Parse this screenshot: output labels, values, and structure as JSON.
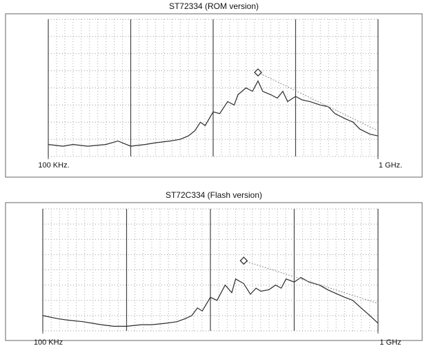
{
  "chart_data": [
    {
      "type": "line",
      "title": "ST72334 (ROM version)",
      "log_x": true,
      "grid": true,
      "xlim": [
        100000,
        1000000000
      ],
      "ylim": [
        0,
        8
      ],
      "xticks": [
        {
          "value": 100000,
          "label": "100 KHz."
        },
        {
          "value": 1000000000,
          "label": "1 GHz."
        }
      ],
      "x": [
        100000,
        150000,
        200000,
        300000,
        500000,
        700000,
        1000000,
        1500000,
        2000000,
        3000000,
        4000000,
        5000000,
        6000000,
        7000000,
        8000000,
        10000000,
        12000000,
        15000000,
        18000000,
        20000000,
        25000000,
        30000000,
        35000000,
        40000000,
        50000000,
        60000000,
        70000000,
        80000000,
        100000000,
        120000000,
        150000000,
        200000000,
        250000000,
        300000000,
        400000000,
        500000000,
        600000000,
        800000000,
        1000000000
      ],
      "series": [
        {
          "color": "#2a2a2a",
          "values": [
            0.7,
            0.6,
            0.7,
            0.6,
            0.7,
            0.9,
            0.6,
            0.7,
            0.8,
            0.9,
            1.0,
            1.2,
            1.5,
            2.0,
            1.8,
            2.6,
            2.5,
            3.2,
            3.0,
            3.6,
            4.0,
            3.8,
            4.4,
            3.8,
            3.6,
            3.4,
            3.8,
            3.2,
            3.5,
            3.3,
            3.2,
            3.0,
            2.9,
            2.5,
            2.2,
            2.0,
            1.6,
            1.3,
            1.2
          ]
        },
        {
          "color": "#8a8a8a",
          "x": [
            35000000,
            1000000000
          ],
          "values": [
            4.9,
            1.5
          ]
        }
      ],
      "marker": {
        "x": 35000000,
        "value": 4.9
      }
    },
    {
      "type": "line",
      "title": "ST72C334 (Flash version)",
      "log_x": true,
      "grid": true,
      "xlim": [
        100000,
        1000000000
      ],
      "ylim": [
        0,
        8
      ],
      "xticks": [
        {
          "value": 100000,
          "label": "100 KHz"
        },
        {
          "value": 1000000000,
          "label": "1 GHz"
        }
      ],
      "x": [
        100000,
        150000,
        200000,
        300000,
        500000,
        700000,
        1000000,
        1500000,
        2000000,
        3000000,
        4000000,
        5000000,
        6000000,
        7000000,
        8000000,
        10000000,
        12000000,
        15000000,
        18000000,
        20000000,
        25000000,
        30000000,
        35000000,
        40000000,
        50000000,
        60000000,
        70000000,
        80000000,
        100000000,
        120000000,
        150000000,
        200000000,
        250000000,
        300000000,
        400000000,
        500000000,
        600000000,
        800000000,
        1000000000
      ],
      "series": [
        {
          "color": "#2a2a2a",
          "values": [
            1.0,
            0.8,
            0.7,
            0.6,
            0.4,
            0.3,
            0.3,
            0.4,
            0.4,
            0.5,
            0.6,
            0.8,
            1.0,
            1.5,
            1.3,
            2.2,
            2.0,
            3.0,
            2.5,
            3.4,
            3.1,
            2.4,
            2.8,
            2.6,
            2.7,
            3.0,
            2.8,
            3.4,
            3.2,
            3.5,
            3.2,
            3.0,
            2.7,
            2.5,
            2.2,
            2.0,
            1.6,
            1.0,
            0.5
          ]
        },
        {
          "color": "#8a8a8a",
          "x": [
            25000000,
            1000000000
          ],
          "values": [
            4.6,
            1.8
          ]
        }
      ],
      "marker": {
        "x": 25000000,
        "value": 4.6
      }
    }
  ]
}
